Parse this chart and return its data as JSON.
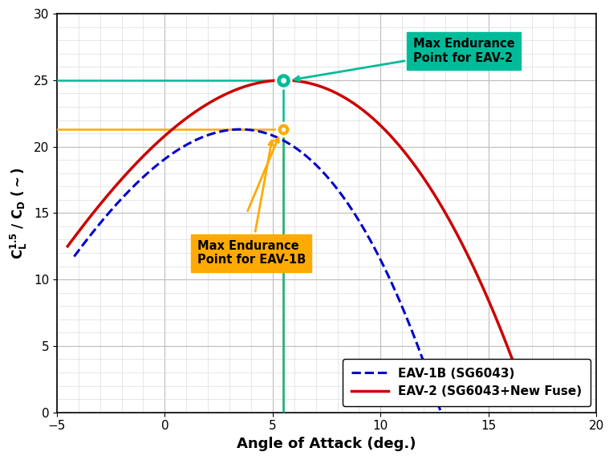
{
  "xlabel": "Angle of Attack (deg.)",
  "ylabel_text": "C_L^1.5 / C_D (~)",
  "xlim": [
    -5,
    20
  ],
  "ylim": [
    0,
    30
  ],
  "xticks": [
    -5,
    0,
    5,
    10,
    15,
    20
  ],
  "yticks": [
    0,
    5,
    10,
    15,
    20,
    25,
    30
  ],
  "eav1b_color": "#0000CC",
  "eav2_color": "#CC0000",
  "teal_color": "#00BB99",
  "gold_color": "#FFAA00",
  "eav2_point_x": 5.5,
  "eav2_point_y": 25.0,
  "eav1b_point_x": 5.5,
  "eav1b_point_y": 21.3,
  "annotation_eav2_text": "Max Endurance\nPoint for EAV-2",
  "annotation_eav1b_text": "Max Endurance\nPoint for EAV-1B",
  "legend_eav1b": "EAV-1B (SG6043)",
  "legend_eav2": "EAV-2 (SG6043+New Fuse)",
  "background_color": "#FFFFFF",
  "major_grid_color": "#BBBBBB",
  "minor_grid_color": "#DDDDDD"
}
